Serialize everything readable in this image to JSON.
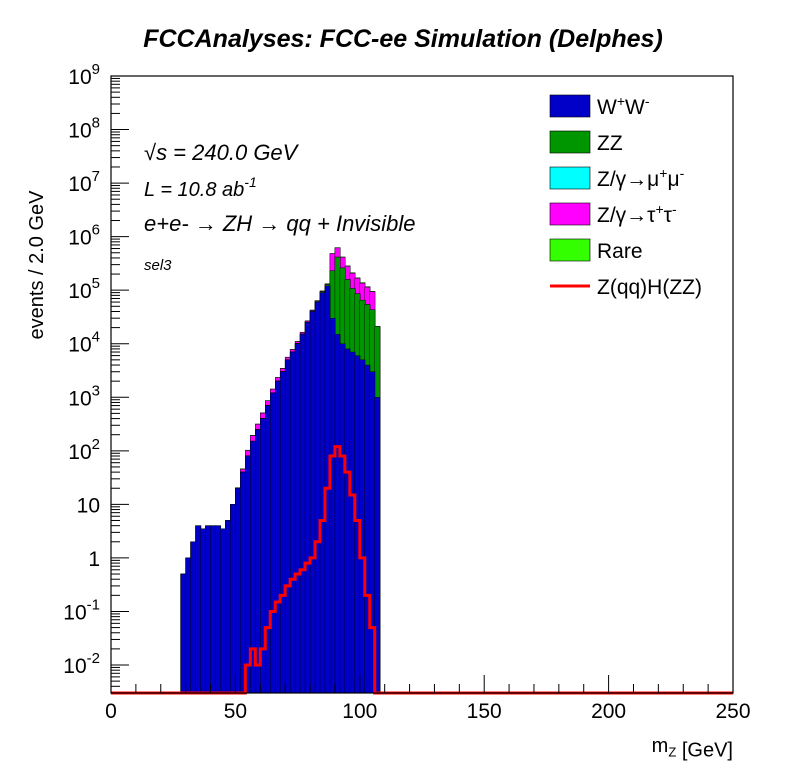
{
  "chart_data": {
    "type": "bar",
    "title": "FCCAnalyses: FCC-ee Simulation (Delphes)",
    "xlabel": "m_Z [GeV]",
    "ylabel": "events / 2.0 GeV",
    "xlim": [
      0,
      250
    ],
    "ylim": [
      0.003,
      1000000000
    ],
    "yscale": "log",
    "bin_width": 2.0,
    "stacked": true,
    "grid": false,
    "legend_position": "top-right",
    "annotations": {
      "sqrt_s": "√s = 240.0 GeV",
      "lumi": "L = 10.8 ab-1",
      "process": "e+e- → ZH → qq + Invisible",
      "selection": "sel3"
    },
    "x_ticks": [
      "0",
      "50",
      "100",
      "150",
      "200",
      "250"
    ],
    "y_ticks": [
      "10^-2",
      "10^-1",
      "1",
      "10",
      "10^2",
      "10^3",
      "10^4",
      "10^5",
      "10^6",
      "10^7",
      "10^8",
      "10^9"
    ],
    "x": [
      29,
      31,
      33,
      35,
      37,
      39,
      41,
      43,
      45,
      47,
      49,
      51,
      53,
      55,
      57,
      59,
      61,
      63,
      65,
      67,
      69,
      71,
      73,
      75,
      77,
      79,
      81,
      83,
      85,
      87,
      89,
      91,
      93,
      95,
      97,
      99,
      101,
      103,
      105,
      107
    ],
    "series": [
      {
        "name": "W+W-",
        "color": "#0000c8",
        "style": "stack",
        "values": [
          0.5,
          1,
          2,
          4,
          3.5,
          4,
          4,
          4,
          3.5,
          5,
          10,
          20,
          40,
          80,
          150,
          250,
          400,
          700,
          1200,
          2000,
          3000,
          5000,
          7000,
          10000,
          15000,
          25000,
          40000,
          60000,
          90000,
          120000,
          30000,
          15000,
          10000,
          8000,
          7000,
          6000,
          5000,
          4000,
          3000,
          1000
        ]
      },
      {
        "name": "ZZ",
        "color": "#009600",
        "style": "stack",
        "values": [
          0,
          0,
          0,
          0,
          0,
          0,
          0,
          0,
          0,
          0,
          0,
          0.1,
          0.3,
          1,
          2,
          3,
          5,
          8,
          12,
          20,
          30,
          50,
          80,
          150,
          250,
          400,
          800,
          1500,
          3000,
          6000,
          200000,
          400000,
          250000,
          150000,
          100000,
          80000,
          60000,
          50000,
          40000,
          20000
        ]
      },
      {
        "name": "Z/γ→μ+μ-",
        "color": "#00ffff",
        "style": "stack",
        "values": [
          0,
          0,
          0,
          0,
          0,
          0,
          0,
          0,
          0,
          0,
          0,
          0,
          0,
          0,
          0,
          0,
          0,
          0,
          0.2,
          0.3,
          0.5,
          0.5,
          0.5,
          1,
          1,
          2,
          5,
          20,
          100,
          200,
          300,
          700,
          400,
          300,
          200,
          150,
          100,
          80,
          60,
          1
        ]
      },
      {
        "name": "Z/γ→τ+τ-",
        "color": "#ff00ff",
        "style": "stack",
        "values": [
          0,
          0,
          0,
          0,
          0,
          0,
          0,
          0,
          0,
          0,
          0,
          0,
          5,
          20,
          40,
          60,
          100,
          150,
          200,
          300,
          400,
          500,
          700,
          800,
          1000,
          1200,
          1500,
          2000,
          3000,
          4000,
          250000,
          200000,
          150000,
          120000,
          100000,
          80000,
          70000,
          60000,
          50000,
          8
        ]
      },
      {
        "name": "Rare",
        "color": "#33ff00",
        "style": "stack",
        "values": [
          0,
          0,
          0,
          0,
          0,
          0,
          0,
          0,
          0,
          0,
          0,
          0.5,
          1,
          2,
          3,
          5,
          8,
          12,
          20,
          30,
          50,
          80,
          100,
          150,
          200,
          300,
          400,
          600,
          1000,
          2000,
          5000,
          10000,
          8000,
          7000,
          6000,
          5000,
          4000,
          3000,
          2500,
          10
        ]
      },
      {
        "name": "Z(qq)H(ZZ)",
        "color": "#ff0000",
        "style": "line",
        "values": [
          0,
          0,
          0,
          0,
          0,
          0,
          0,
          0,
          0,
          0,
          0,
          0,
          0,
          0.01,
          0.02,
          0.01,
          0.02,
          0.05,
          0.1,
          0.15,
          0.2,
          0.3,
          0.4,
          0.5,
          0.6,
          0.8,
          1,
          2,
          5,
          20,
          80,
          120,
          80,
          40,
          15,
          5,
          1,
          0.2,
          0.05,
          0
        ]
      }
    ]
  }
}
